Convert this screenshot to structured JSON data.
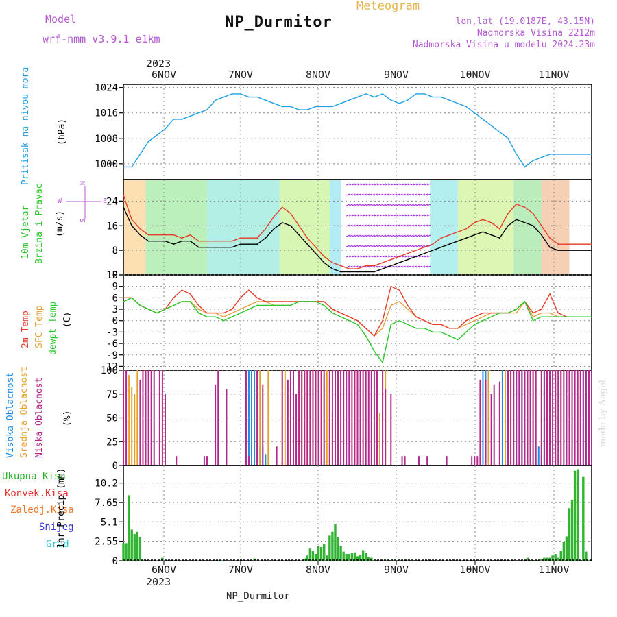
{
  "header": {
    "model_label": "Model",
    "model_name": "wrf-nmm_v3.9.1 e1km",
    "product": "Meteogram",
    "station": "NP_Durmitor",
    "lonlat": "lon,lat (19.0187E, 43.15N)",
    "altitude": "Nadmorska Visina 2212m",
    "model_altitude": "Nadmorska Visina u modelu 2024.23m",
    "footer_station": "NP_Durmitor",
    "watermark": "made by Angel"
  },
  "time_axis": {
    "year": "2023",
    "days": [
      "6NOV",
      "7NOV",
      "8NOV",
      "9NOV",
      "10NOV",
      "11NOV"
    ]
  },
  "panel_labels": {
    "pressure": {
      "title": "Pritisak na nivou mora",
      "unit": "(hPa)"
    },
    "wind": {
      "title1": "10m Vjetar",
      "title2": "Brzina i Pravac",
      "unit": "(m/s)",
      "compass_n": "N",
      "compass_s": "S",
      "compass_w": "W",
      "compass_e": "E"
    },
    "temp": {
      "t1": "2m Temp",
      "t2": "SFC Temp",
      "t3": "dewpt Temp",
      "unit": "(C)"
    },
    "cloud": {
      "c1": "Visoka Oblacnost",
      "c2": "Srednja Oblacnost",
      "c3": "Niska Oblacnost",
      "unit": "(%)"
    },
    "precip": {
      "p1": "Ukupna Kisa",
      "p2": "Konvek.Kisa",
      "p3": "Zaledj.Kisa",
      "p4": "Snijeg",
      "p5": "Grad",
      "unit": "1hr Precip (mm)"
    }
  },
  "colors": {
    "pressure_line": "#1ea0e6",
    "t2m": "#e63c28",
    "tsfc": "#e6a03c",
    "tdew": "#28c828",
    "cloud_high": "#1e8ce6",
    "cloud_mid": "#e6a028",
    "cloud_low": "#b4288c",
    "precip_total": "#32b432",
    "precip_conv": "#e63232",
    "precip_frz": "#f07828",
    "precip_snow": "#3c3cdc",
    "precip_hail": "#28c8c8",
    "wind_speed": "#000000",
    "gust": "#e63c28"
  },
  "chart_data": [
    {
      "type": "line",
      "name": "pressure",
      "ylim": [
        995,
        1025
      ],
      "yticks": [
        "1000",
        "1008",
        "1016",
        "1024"
      ],
      "x": [
        0,
        3,
        6,
        9,
        12,
        15,
        18,
        21,
        24,
        27,
        30,
        33,
        36,
        39,
        42,
        45,
        48,
        51,
        54,
        57,
        60,
        63,
        66,
        69,
        72,
        75,
        78,
        81,
        84,
        87,
        90,
        93,
        96,
        99,
        102,
        105,
        108,
        111,
        114,
        117,
        120,
        123,
        126,
        129,
        132,
        135,
        138,
        141,
        144,
        147,
        150,
        153,
        156,
        159,
        162,
        165,
        168
      ],
      "series": [
        {
          "values": [
            999,
            999,
            1003,
            1007,
            1009,
            1011,
            1014,
            1014,
            1015,
            1016,
            1017,
            1020,
            1021,
            1022,
            1022,
            1021,
            1021,
            1020,
            1019,
            1018,
            1018,
            1017,
            1017,
            1018,
            1018,
            1018,
            1019,
            1020,
            1021,
            1022,
            1021,
            1022,
            1020,
            1019,
            1020,
            1022,
            1022,
            1021,
            1021,
            1020,
            1019,
            1018,
            1016,
            1014,
            1012,
            1010,
            1008,
            1003,
            999,
            1001,
            1002,
            1003,
            1003,
            1003,
            1003,
            1003,
            1003
          ]
        }
      ]
    },
    {
      "type": "line",
      "name": "wind",
      "ylim": [
        0,
        31
      ],
      "yticks": [
        "0",
        "8",
        "16",
        "24"
      ],
      "x": [
        0,
        3,
        6,
        9,
        12,
        15,
        18,
        21,
        24,
        27,
        30,
        33,
        36,
        39,
        42,
        45,
        48,
        51,
        54,
        57,
        60,
        63,
        66,
        69,
        72,
        75,
        78,
        81,
        84,
        87,
        90,
        93,
        96,
        99,
        102,
        105,
        108,
        111,
        114,
        117,
        120,
        123,
        126,
        129,
        132,
        135,
        138,
        141,
        144,
        147,
        150,
        153,
        156,
        159,
        162,
        165,
        168
      ],
      "series": [
        {
          "values": [
            22,
            16,
            13,
            11,
            11,
            11,
            10,
            11,
            11,
            9,
            9,
            9,
            9,
            9,
            10,
            10,
            10,
            12,
            15,
            17,
            16,
            13,
            10,
            7,
            4,
            2,
            1,
            1,
            1,
            1,
            1,
            2,
            3,
            4,
            5,
            6,
            7,
            8,
            9,
            10,
            11,
            12,
            13,
            14,
            13,
            12,
            16,
            18,
            17,
            16,
            13,
            9,
            8,
            8,
            8,
            8,
            8
          ]
        },
        {
          "values": [
            26,
            18,
            15,
            13,
            13,
            13,
            13,
            12,
            13,
            11,
            11,
            11,
            11,
            11,
            12,
            12,
            12,
            15,
            19,
            22,
            20,
            16,
            12,
            9,
            6,
            4,
            3,
            2,
            2,
            3,
            3,
            4,
            5,
            6,
            7,
            8,
            9,
            10,
            12,
            13,
            14,
            15,
            17,
            18,
            17,
            15,
            20,
            23,
            22,
            20,
            16,
            12,
            10,
            10,
            10,
            10,
            10
          ]
        }
      ]
    },
    {
      "type": "line",
      "name": "temperature",
      "ylim": [
        -13,
        12
      ],
      "yticks": [
        "12",
        "9",
        "6",
        "3",
        "0",
        "-3",
        "-6",
        "-9",
        "-12"
      ],
      "x": [
        0,
        3,
        6,
        9,
        12,
        15,
        18,
        21,
        24,
        27,
        30,
        33,
        36,
        39,
        42,
        45,
        48,
        51,
        54,
        57,
        60,
        63,
        66,
        69,
        72,
        75,
        78,
        81,
        84,
        87,
        90,
        93,
        96,
        99,
        102,
        105,
        108,
        111,
        114,
        117,
        120,
        123,
        126,
        129,
        132,
        135,
        138,
        141,
        144,
        147,
        150,
        153,
        156,
        159,
        162,
        165,
        168
      ],
      "series": [
        {
          "values": [
            5,
            6,
            4,
            3,
            2,
            3,
            4,
            5,
            5,
            3,
            2,
            2,
            1,
            2,
            3,
            4,
            5,
            5,
            4,
            4,
            4,
            5,
            5,
            5,
            5,
            3,
            2,
            1,
            0,
            -2,
            -4,
            -2,
            4,
            5,
            3,
            1,
            0,
            -1,
            -1,
            -2,
            -2,
            -1,
            0,
            1,
            2,
            2,
            2,
            2,
            5,
            1,
            2,
            2,
            1,
            1,
            1,
            1,
            1
          ]
        },
        {
          "values": [
            6,
            6,
            4,
            3,
            2,
            3,
            6,
            8,
            7,
            4,
            2,
            2,
            2,
            3,
            6,
            8,
            6,
            5,
            5,
            5,
            5,
            5,
            5,
            5,
            5,
            3,
            2,
            1,
            0,
            -2,
            -4,
            0,
            9,
            8,
            4,
            1,
            0,
            -1,
            -1,
            -2,
            -2,
            0,
            1,
            2,
            2,
            2,
            2,
            3,
            5,
            2,
            3,
            7,
            2,
            1,
            1,
            1,
            1
          ]
        },
        {
          "values": [
            5,
            6,
            4,
            3,
            2,
            3,
            4,
            5,
            5,
            2,
            1,
            1,
            0,
            1,
            2,
            3,
            4,
            4,
            4,
            4,
            4,
            5,
            5,
            5,
            4,
            2,
            1,
            0,
            -1,
            -4,
            -8,
            -11,
            -1,
            0,
            -1,
            -2,
            -2,
            -3,
            -3,
            -4,
            -5,
            -3,
            -1,
            0,
            1,
            2,
            2,
            3,
            5,
            0,
            1,
            1,
            1,
            1,
            1,
            1,
            1
          ]
        }
      ]
    },
    {
      "type": "bar",
      "name": "cloud_cover",
      "ylim": [
        0,
        100
      ],
      "yticks": [
        "0",
        "25",
        "50",
        "75",
        "100"
      ],
      "series": [
        {
          "name": "high",
          "x": [
            44,
            45,
            46,
            47,
            48,
            49,
            50,
            51,
            52,
            129,
            130,
            131,
            136,
            137,
            140,
            141,
            143,
            144,
            146,
            149,
            150,
            151,
            152,
            155,
            159,
            161,
            165,
            166,
            167
          ],
          "values": [
            100,
            100,
            100,
            100,
            20,
            20,
            20,
            12,
            90,
            100,
            100,
            100,
            100,
            100,
            100,
            100,
            100,
            100,
            100,
            20,
            10,
            100,
            100,
            100,
            100,
            100,
            100,
            100,
            100
          ]
        },
        {
          "name": "mid",
          "x": [
            0,
            2,
            3,
            4,
            5,
            48,
            49,
            52,
            57,
            58,
            60,
            61,
            63,
            64,
            65,
            66,
            67,
            68,
            69,
            70,
            71,
            72,
            73,
            74,
            75,
            76,
            92,
            93,
            94,
            130,
            131,
            137,
            138,
            139,
            147,
            150,
            152,
            155,
            157,
            160
          ],
          "values": [
            100,
            95,
            82,
            75,
            100,
            100,
            100,
            100,
            100,
            100,
            78,
            100,
            100,
            100,
            100,
            100,
            100,
            100,
            100,
            100,
            100,
            95,
            100,
            90,
            55,
            100,
            55,
            100,
            100,
            90,
            100,
            100,
            100,
            100,
            100,
            100,
            100,
            100,
            100,
            100
          ]
        },
        {
          "name": "low",
          "x": [
            0,
            1,
            6,
            7,
            8,
            9,
            10,
            11,
            13,
            14,
            15,
            19,
            29,
            30,
            33,
            34,
            37,
            44,
            45,
            48,
            50,
            55,
            57,
            59,
            60,
            61,
            62,
            63,
            64,
            65,
            66,
            67,
            68,
            69,
            70,
            71,
            72,
            74,
            75,
            76,
            77,
            78,
            79,
            80,
            81,
            82,
            83,
            84,
            85,
            86,
            87,
            88,
            89,
            90,
            91,
            93,
            94,
            96,
            100,
            101,
            106,
            109,
            116,
            125,
            126,
            127,
            128,
            130,
            132,
            133,
            135,
            138,
            139,
            140,
            141,
            142,
            143,
            144,
            145,
            146,
            147,
            148,
            150,
            151,
            152,
            153,
            154,
            155,
            156,
            157,
            158,
            159,
            160,
            161,
            162,
            163,
            164,
            165,
            166,
            167,
            168
          ],
          "values": [
            100,
            100,
            90,
            100,
            100,
            100,
            100,
            100,
            100,
            100,
            75,
            10,
            10,
            10,
            85,
            100,
            80,
            100,
            10,
            100,
            85,
            20,
            100,
            90,
            100,
            100,
            75,
            100,
            100,
            100,
            100,
            100,
            100,
            100,
            100,
            100,
            100,
            100,
            100,
            100,
            100,
            100,
            100,
            100,
            100,
            100,
            100,
            100,
            100,
            100,
            100,
            100,
            100,
            100,
            100,
            100,
            80,
            75,
            10,
            10,
            10,
            10,
            10,
            10,
            10,
            10,
            90,
            90,
            75,
            85,
            88,
            100,
            100,
            100,
            100,
            100,
            100,
            100,
            100,
            100,
            100,
            100,
            100,
            100,
            100,
            100,
            100,
            100,
            100,
            100,
            100,
            100,
            100,
            100,
            100,
            100,
            100,
            100,
            100,
            100,
            100
          ]
        }
      ]
    },
    {
      "type": "bar",
      "name": "precipitation",
      "ylim": [
        0,
        12.5
      ],
      "yticks": [
        "0",
        "2.55",
        "5.1",
        "7.65",
        "10.2"
      ],
      "series": [
        {
          "name": "Ukupna Kisa",
          "x": [
            0,
            1,
            2,
            3,
            4,
            5,
            6,
            7,
            14,
            20,
            35,
            36,
            47,
            48,
            65,
            66,
            67,
            68,
            69,
            70,
            71,
            72,
            73,
            74,
            75,
            76,
            77,
            78,
            79,
            80,
            81,
            82,
            83,
            84,
            85,
            86,
            87,
            88,
            89,
            90,
            94,
            97,
            100,
            102,
            120,
            129,
            145,
            150,
            151,
            152,
            153,
            154,
            155,
            156,
            157,
            158,
            159,
            160,
            161,
            162,
            163,
            165,
            166,
            167
          ],
          "values": [
            2.3,
            2.3,
            8.6,
            4.1,
            3.5,
            3.8,
            3.1,
            0.1,
            0.4,
            0.1,
            0.1,
            0.1,
            0.3,
            0.1,
            0.3,
            0.7,
            1.6,
            1.3,
            0.9,
            1.9,
            1.8,
            2.2,
            0.7,
            3.3,
            3.8,
            4.8,
            3.1,
            1.9,
            1.2,
            0.9,
            0.9,
            1.0,
            1.1,
            0.6,
            0.8,
            1.4,
            1.0,
            0.5,
            0.4,
            0.1,
            0.1,
            0.1,
            0.1,
            0.1,
            0.1,
            0.1,
            0.4,
            0.2,
            0.4,
            0.4,
            0.4,
            0.7,
            0.9,
            0.4,
            1.3,
            2.5,
            3.2,
            6.9,
            8.0,
            11.8,
            12.0,
            11.0,
            1.2,
            0.1
          ]
        }
      ]
    }
  ]
}
